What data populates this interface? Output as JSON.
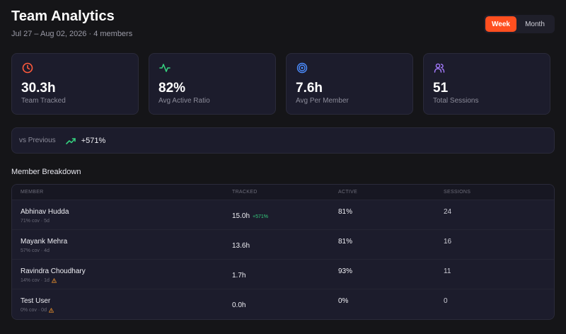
{
  "header": {
    "title": "Team Analytics",
    "subtitle": "Jul 27 – Aug 02, 2026 · 4 members"
  },
  "range_toggle": {
    "options": [
      "Week",
      "Month"
    ],
    "selected": "Week",
    "accent": "#ff4f1f"
  },
  "stats": [
    {
      "value": "30.3h",
      "label": "Team Tracked",
      "icon": "clock-icon",
      "color": "#ff5a3c"
    },
    {
      "value": "82%",
      "label": "Avg Active Ratio",
      "icon": "activity-icon",
      "color": "#35d07f"
    },
    {
      "value": "7.6h",
      "label": "Avg Per Member",
      "icon": "target-icon",
      "color": "#4c8dff"
    },
    {
      "value": "51",
      "label": "Total Sessions",
      "icon": "users-icon",
      "color": "#a57bff"
    }
  ],
  "comparison": {
    "label": "vs Previous",
    "trend_icon": "trending-up-icon",
    "value": "+571%",
    "color": "#35d07f"
  },
  "breakdown": {
    "title": "Member Breakdown",
    "columns": [
      "MEMBER",
      "TRACKED",
      "ACTIVE",
      "SESSIONS"
    ],
    "rows": [
      {
        "name": "Abhinav Hudda",
        "meta": "71% cov · 5d",
        "warning": false,
        "tracked": "15.0h",
        "delta": "+571%",
        "active": "81%",
        "sessions": "24"
      },
      {
        "name": "Mayank Mehra",
        "meta": "57% cov · 4d",
        "warning": false,
        "tracked": "13.6h",
        "delta": "",
        "active": "81%",
        "sessions": "16"
      },
      {
        "name": "Ravindra Choudhary",
        "meta": "14% cov · 1d",
        "warning": true,
        "tracked": "1.7h",
        "delta": "",
        "active": "93%",
        "sessions": "11"
      },
      {
        "name": "Test User",
        "meta": "0% cov · 0d",
        "warning": true,
        "tracked": "0.0h",
        "delta": "",
        "active": "0%",
        "sessions": "0"
      }
    ]
  },
  "colors": {
    "background": "#151518",
    "card": "#1c1c2c",
    "warning": "#e08a2c"
  }
}
